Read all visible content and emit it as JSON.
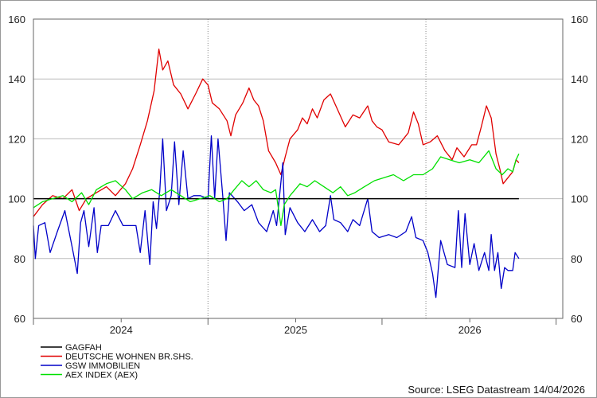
{
  "chart_data": {
    "type": "line",
    "x_range": [
      "2023-07-01",
      "2026-07-15"
    ],
    "ylim": [
      60,
      160
    ],
    "yticks": [
      60,
      80,
      100,
      120,
      140,
      160
    ],
    "xtick_labels": [
      {
        "label": "2024",
        "date": "2024-01-01"
      },
      {
        "label": "2025",
        "date": "2025-01-01"
      },
      {
        "label": "2026",
        "date": "2026-01-01"
      }
    ],
    "x_minor_ticks": [
      "2023-07-01",
      "2024-07-01",
      "2025-07-01",
      "2026-07-01"
    ],
    "vertical_gridlines": [
      "2024-07-01",
      "2025-10-01"
    ],
    "grid": true,
    "legend_position": "bottom-left",
    "source": "Source: LSEG Datastream 14/04/2026",
    "series": [
      {
        "name": "GAGFAH",
        "color": "#000000",
        "points": [
          [
            "2023-07-01",
            100
          ],
          [
            "2026-04-14",
            100
          ]
        ]
      },
      {
        "name": "DEUTSCHE WOHNEN BR.SHS.",
        "color": "#e00000",
        "points": [
          [
            "2023-07-01",
            94
          ],
          [
            "2023-07-20",
            98
          ],
          [
            "2023-08-10",
            101
          ],
          [
            "2023-09-01",
            100
          ],
          [
            "2023-09-20",
            103
          ],
          [
            "2023-10-05",
            96
          ],
          [
            "2023-10-20",
            100
          ],
          [
            "2023-11-10",
            102
          ],
          [
            "2023-12-01",
            104
          ],
          [
            "2023-12-20",
            101
          ],
          [
            "2024-01-10",
            105
          ],
          [
            "2024-01-25",
            110
          ],
          [
            "2024-02-10",
            118
          ],
          [
            "2024-02-25",
            126
          ],
          [
            "2024-03-10",
            136
          ],
          [
            "2024-03-20",
            150
          ],
          [
            "2024-03-28",
            143
          ],
          [
            "2024-04-08",
            146
          ],
          [
            "2024-04-20",
            138
          ],
          [
            "2024-05-05",
            135
          ],
          [
            "2024-05-20",
            130
          ],
          [
            "2024-06-05",
            135
          ],
          [
            "2024-06-20",
            140
          ],
          [
            "2024-07-01",
            138
          ],
          [
            "2024-07-10",
            132
          ],
          [
            "2024-07-25",
            130
          ],
          [
            "2024-08-10",
            126
          ],
          [
            "2024-08-18",
            121
          ],
          [
            "2024-08-28",
            128
          ],
          [
            "2024-09-12",
            132
          ],
          [
            "2024-09-25",
            137
          ],
          [
            "2024-10-05",
            133
          ],
          [
            "2024-10-15",
            131
          ],
          [
            "2024-10-25",
            126
          ],
          [
            "2024-11-05",
            116
          ],
          [
            "2024-11-20",
            112
          ],
          [
            "2024-12-01",
            108
          ],
          [
            "2024-12-10",
            114
          ],
          [
            "2024-12-20",
            120
          ],
          [
            "2025-01-05",
            123
          ],
          [
            "2025-01-15",
            127
          ],
          [
            "2025-01-25",
            125
          ],
          [
            "2025-02-05",
            130
          ],
          [
            "2025-02-15",
            127
          ],
          [
            "2025-03-01",
            133
          ],
          [
            "2025-03-15",
            135
          ],
          [
            "2025-04-01",
            129
          ],
          [
            "2025-04-15",
            124
          ],
          [
            "2025-05-01",
            128
          ],
          [
            "2025-05-15",
            127
          ],
          [
            "2025-06-01",
            131
          ],
          [
            "2025-06-10",
            126
          ],
          [
            "2025-06-20",
            124
          ],
          [
            "2025-07-01",
            123
          ],
          [
            "2025-07-15",
            119
          ],
          [
            "2025-08-05",
            118
          ],
          [
            "2025-08-25",
            122
          ],
          [
            "2025-09-05",
            129
          ],
          [
            "2025-09-15",
            125
          ],
          [
            "2025-09-25",
            118
          ],
          [
            "2025-10-10",
            119
          ],
          [
            "2025-10-25",
            121
          ],
          [
            "2025-11-10",
            116
          ],
          [
            "2025-11-25",
            113
          ],
          [
            "2025-12-05",
            117
          ],
          [
            "2025-12-20",
            114
          ],
          [
            "2026-01-05",
            118
          ],
          [
            "2026-01-15",
            118
          ],
          [
            "2026-01-25",
            124
          ],
          [
            "2026-02-05",
            131
          ],
          [
            "2026-02-15",
            127
          ],
          [
            "2026-02-25",
            115
          ],
          [
            "2026-03-05",
            110
          ],
          [
            "2026-03-12",
            105
          ],
          [
            "2026-03-22",
            107
          ],
          [
            "2026-04-01",
            109
          ],
          [
            "2026-04-08",
            113
          ],
          [
            "2026-04-14",
            112
          ]
        ]
      },
      {
        "name": "GSW IMMOBILIEN",
        "color": "#0000c8",
        "points": [
          [
            "2023-07-01",
            91
          ],
          [
            "2023-07-05",
            80
          ],
          [
            "2023-07-12",
            91
          ],
          [
            "2023-07-25",
            92
          ],
          [
            "2023-08-05",
            82
          ],
          [
            "2023-08-20",
            89
          ],
          [
            "2023-09-05",
            96
          ],
          [
            "2023-09-20",
            84
          ],
          [
            "2023-10-01",
            75
          ],
          [
            "2023-10-08",
            92
          ],
          [
            "2023-10-15",
            96
          ],
          [
            "2023-10-25",
            84
          ],
          [
            "2023-11-05",
            97
          ],
          [
            "2023-11-12",
            82
          ],
          [
            "2023-11-20",
            91
          ],
          [
            "2023-12-05",
            91
          ],
          [
            "2023-12-20",
            96
          ],
          [
            "2024-01-05",
            91
          ],
          [
            "2024-01-20",
            91
          ],
          [
            "2024-02-01",
            91
          ],
          [
            "2024-02-10",
            82
          ],
          [
            "2024-02-20",
            96
          ],
          [
            "2024-03-01",
            78
          ],
          [
            "2024-03-08",
            99
          ],
          [
            "2024-03-15",
            90
          ],
          [
            "2024-03-22",
            103
          ],
          [
            "2024-03-28",
            120
          ],
          [
            "2024-04-05",
            96
          ],
          [
            "2024-04-15",
            101
          ],
          [
            "2024-04-22",
            119
          ],
          [
            "2024-05-01",
            98
          ],
          [
            "2024-05-10",
            116
          ],
          [
            "2024-05-20",
            100
          ],
          [
            "2024-06-01",
            101
          ],
          [
            "2024-06-15",
            101
          ],
          [
            "2024-07-01",
            100
          ],
          [
            "2024-07-08",
            121
          ],
          [
            "2024-07-15",
            100
          ],
          [
            "2024-07-22",
            120
          ],
          [
            "2024-08-01",
            101
          ],
          [
            "2024-08-08",
            86
          ],
          [
            "2024-08-15",
            102
          ],
          [
            "2024-09-01",
            99
          ],
          [
            "2024-09-15",
            96
          ],
          [
            "2024-10-01",
            98
          ],
          [
            "2024-10-15",
            92
          ],
          [
            "2024-11-01",
            89
          ],
          [
            "2024-11-15",
            96
          ],
          [
            "2024-11-22",
            91
          ],
          [
            "2024-12-05",
            112
          ],
          [
            "2024-12-10",
            88
          ],
          [
            "2024-12-20",
            97
          ],
          [
            "2025-01-05",
            92
          ],
          [
            "2025-01-20",
            89
          ],
          [
            "2025-02-05",
            93
          ],
          [
            "2025-02-20",
            89
          ],
          [
            "2025-03-05",
            91
          ],
          [
            "2025-03-15",
            101
          ],
          [
            "2025-03-22",
            93
          ],
          [
            "2025-04-05",
            92
          ],
          [
            "2025-04-20",
            89
          ],
          [
            "2025-05-01",
            93
          ],
          [
            "2025-05-15",
            91
          ],
          [
            "2025-06-01",
            100
          ],
          [
            "2025-06-10",
            89
          ],
          [
            "2025-06-25",
            87
          ],
          [
            "2025-07-15",
            88
          ],
          [
            "2025-08-01",
            87
          ],
          [
            "2025-08-20",
            89
          ],
          [
            "2025-09-01",
            94
          ],
          [
            "2025-09-10",
            87
          ],
          [
            "2025-09-25",
            86
          ],
          [
            "2025-10-05",
            82
          ],
          [
            "2025-10-15",
            75
          ],
          [
            "2025-10-22",
            67
          ],
          [
            "2025-11-01",
            86
          ],
          [
            "2025-11-15",
            78
          ],
          [
            "2025-12-01",
            77
          ],
          [
            "2025-12-08",
            96
          ],
          [
            "2025-12-15",
            77
          ],
          [
            "2025-12-22",
            95
          ],
          [
            "2026-01-01",
            78
          ],
          [
            "2026-01-10",
            85
          ],
          [
            "2026-01-20",
            76
          ],
          [
            "2026-02-01",
            82
          ],
          [
            "2026-02-10",
            76
          ],
          [
            "2026-02-15",
            88
          ],
          [
            "2026-02-22",
            76
          ],
          [
            "2026-03-01",
            82
          ],
          [
            "2026-03-08",
            70
          ],
          [
            "2026-03-15",
            77
          ],
          [
            "2026-03-22",
            76
          ],
          [
            "2026-04-01",
            76
          ],
          [
            "2026-04-06",
            82
          ],
          [
            "2026-04-14",
            80
          ]
        ]
      },
      {
        "name": "AEX INDEX (AEX)",
        "color": "#00e000",
        "points": [
          [
            "2023-07-01",
            97
          ],
          [
            "2023-07-20",
            99
          ],
          [
            "2023-08-10",
            100
          ],
          [
            "2023-09-01",
            101
          ],
          [
            "2023-09-20",
            99
          ],
          [
            "2023-10-10",
            102
          ],
          [
            "2023-10-25",
            98
          ],
          [
            "2023-11-10",
            103
          ],
          [
            "2023-12-01",
            105
          ],
          [
            "2023-12-20",
            106
          ],
          [
            "2024-01-10",
            103
          ],
          [
            "2024-01-25",
            100
          ],
          [
            "2024-02-15",
            102
          ],
          [
            "2024-03-05",
            103
          ],
          [
            "2024-03-25",
            101
          ],
          [
            "2024-04-15",
            103
          ],
          [
            "2024-05-05",
            101
          ],
          [
            "2024-05-25",
            99
          ],
          [
            "2024-06-15",
            100
          ],
          [
            "2024-07-05",
            101
          ],
          [
            "2024-07-25",
            99
          ],
          [
            "2024-08-10",
            100
          ],
          [
            "2024-08-25",
            103
          ],
          [
            "2024-09-10",
            106
          ],
          [
            "2024-09-25",
            104
          ],
          [
            "2024-10-10",
            106
          ],
          [
            "2024-10-25",
            103
          ],
          [
            "2024-11-10",
            102
          ],
          [
            "2024-11-20",
            103
          ],
          [
            "2024-12-01",
            91
          ],
          [
            "2024-12-08",
            98
          ],
          [
            "2024-12-20",
            101
          ],
          [
            "2025-01-10",
            105
          ],
          [
            "2025-01-25",
            104
          ],
          [
            "2025-02-10",
            106
          ],
          [
            "2025-03-01",
            104
          ],
          [
            "2025-03-20",
            102
          ],
          [
            "2025-04-05",
            104
          ],
          [
            "2025-04-20",
            101
          ],
          [
            "2025-05-05",
            102
          ],
          [
            "2025-05-25",
            104
          ],
          [
            "2025-06-15",
            106
          ],
          [
            "2025-07-05",
            107
          ],
          [
            "2025-07-25",
            108
          ],
          [
            "2025-08-15",
            106
          ],
          [
            "2025-09-05",
            108
          ],
          [
            "2025-09-25",
            108
          ],
          [
            "2025-10-15",
            110
          ],
          [
            "2025-11-01",
            114
          ],
          [
            "2025-11-20",
            113
          ],
          [
            "2025-12-10",
            112
          ],
          [
            "2026-01-01",
            113
          ],
          [
            "2026-01-20",
            112
          ],
          [
            "2026-02-10",
            116
          ],
          [
            "2026-02-25",
            110
          ],
          [
            "2026-03-10",
            108
          ],
          [
            "2026-03-22",
            110
          ],
          [
            "2026-04-01",
            109
          ],
          [
            "2026-04-08",
            113
          ],
          [
            "2026-04-14",
            115
          ]
        ]
      }
    ]
  }
}
